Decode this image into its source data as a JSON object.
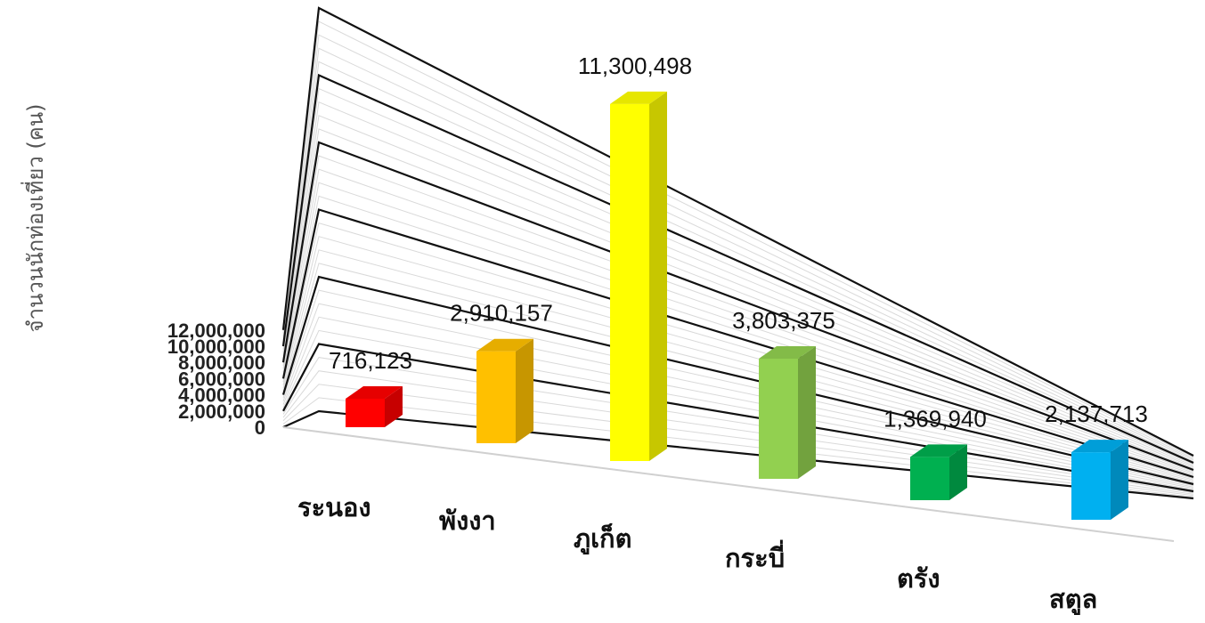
{
  "chart_data": {
    "type": "bar",
    "ylabel": "จำนวนนักท่องเที่ยว (คน)",
    "categories": [
      "ระนอง",
      "พังงา",
      "ภูเก็ต",
      "กระบี่",
      "ตรัง",
      "สตูล"
    ],
    "values": [
      716123,
      2910157,
      11300498,
      3803375,
      1369940,
      2137713
    ],
    "value_labels": [
      "716,123",
      "2,910,157",
      "11,300,498",
      "3,803,375",
      "1,369,940",
      "2,137,713"
    ],
    "colors": [
      "#ff0000",
      "#ffc000",
      "#ffff00",
      "#92d050",
      "#00b050",
      "#00b0f0"
    ],
    "ylim": [
      0,
      12000000
    ],
    "y_ticks": [
      "0",
      "2,000,000",
      "4,000,000",
      "6,000,000",
      "8,000,000",
      "10,000,000",
      "12,000,000"
    ],
    "grid": true,
    "legend": false,
    "style": "3d-perspective"
  }
}
